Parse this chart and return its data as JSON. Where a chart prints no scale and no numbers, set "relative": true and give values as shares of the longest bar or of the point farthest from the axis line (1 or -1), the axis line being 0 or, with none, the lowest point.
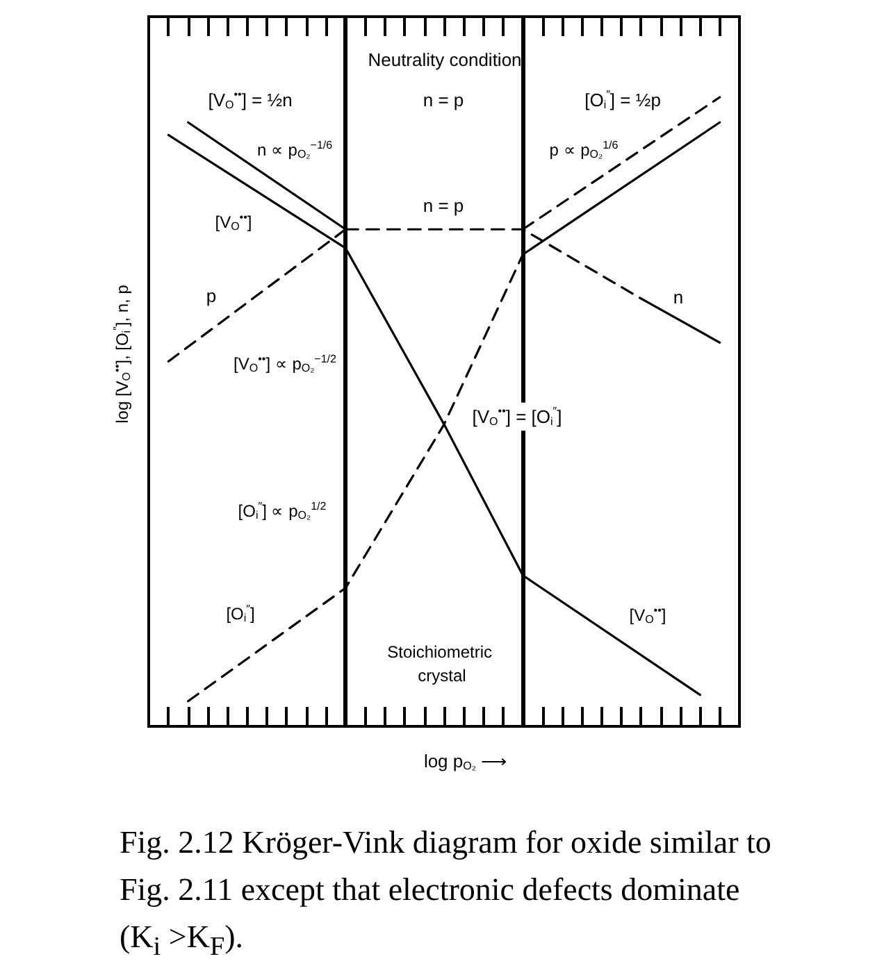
{
  "chart_data": {
    "type": "line",
    "relative": true,
    "xlabel": "log p$_{O₂}$ ⟶",
    "ylabel": "log [V$_{O}$$^{••}$], [O$_{i}$$^{″}$], n, p",
    "categories": [
      null,
      null,
      null,
      null,
      null,
      null,
      null,
      null,
      null,
      null,
      null,
      null,
      null,
      null,
      null,
      null,
      null,
      null,
      null,
      null,
      null,
      null,
      null,
      null,
      null,
      null,
      null,
      null,
      null,
      null,
      null
    ],
    "marker": "none",
    "series": [
      {
        "color": "#000000",
        "line_style": "solid",
        "values": [
          null,
          null,
          0.96,
          null,
          null,
          null,
          null,
          null,
          null,
          null,
          0.79,
          null,
          null,
          null,
          null,
          null,
          null,
          null,
          null,
          null,
          null,
          null,
          null,
          null,
          null,
          null,
          null,
          null,
          null,
          null,
          null
        ]
      },
      {
        "color": "#000000",
        "line_style": "dashed",
        "values": [
          null,
          null,
          null,
          null,
          null,
          null,
          null,
          null,
          null,
          null,
          0.79,
          null,
          null,
          null,
          null,
          null,
          null,
          null,
          null,
          0.79,
          null,
          null,
          null,
          null,
          null,
          0.68,
          null,
          null,
          null,
          null,
          null
        ]
      },
      {
        "color": "#000000",
        "line_style": "solid",
        "values": [
          null,
          null,
          null,
          null,
          null,
          null,
          null,
          null,
          null,
          null,
          null,
          null,
          null,
          null,
          null,
          null,
          null,
          null,
          null,
          null,
          null,
          null,
          null,
          null,
          null,
          0.68,
          null,
          null,
          null,
          0.61,
          null
        ]
      },
      {
        "color": "#000000",
        "line_style": "dashed",
        "values": [
          null,
          0.58,
          null,
          null,
          null,
          null,
          null,
          null,
          null,
          null,
          0.79,
          null,
          null,
          null,
          null,
          null,
          null,
          null,
          null,
          null,
          null,
          null,
          null,
          null,
          null,
          null,
          null,
          null,
          null,
          null,
          null
        ]
      },
      {
        "color": "#000000",
        "line_style": "dashed",
        "values": [
          null,
          null,
          null,
          null,
          null,
          null,
          null,
          null,
          null,
          null,
          null,
          null,
          null,
          null,
          null,
          null,
          null,
          null,
          null,
          0.79,
          null,
          null,
          null,
          null,
          null,
          null,
          null,
          null,
          null,
          1,
          null
        ]
      },
      {
        "color": "#000000",
        "line_style": "solid",
        "values": [
          null,
          0.94,
          null,
          null,
          null,
          null,
          null,
          null,
          null,
          null,
          0.76,
          null,
          null,
          null,
          null,
          0.48,
          null,
          null,
          null,
          0.24,
          null,
          null,
          null,
          null,
          null,
          null,
          null,
          null,
          0.05,
          null,
          null
        ]
      },
      {
        "color": "#000000",
        "line_style": "dashed",
        "values": [
          null,
          null,
          0.04,
          null,
          null,
          null,
          null,
          null,
          null,
          null,
          0.22,
          null,
          null,
          null,
          null,
          0.48,
          null,
          null,
          null,
          0.75,
          null,
          null,
          null,
          null,
          null,
          null,
          null,
          null,
          null,
          null,
          null
        ]
      },
      {
        "color": "#000000",
        "line_style": "solid",
        "values": [
          null,
          null,
          null,
          null,
          null,
          null,
          null,
          null,
          null,
          null,
          null,
          null,
          null,
          null,
          null,
          null,
          null,
          null,
          null,
          0.75,
          null,
          null,
          null,
          null,
          null,
          null,
          null,
          null,
          null,
          0.96,
          null
        ]
      }
    ],
    "annotations": [
      "Neutrality condition",
      "[V$_{O}$$^{••}$] = ½n",
      "n = p",
      "[O$_{i}$$^{″}$] = ½p",
      "n ∝ p$_{O₂}$$^{−1/6}$",
      "p ∝ p$_{O₂}$$^{1/6}$",
      "[V$_{O}$$^{••}$]",
      "n = p",
      "p",
      "n",
      "[V$_{O}$$^{••}$] ∝ p$_{O₂}$$^{−1/2}$",
      "[V$_{O}$$^{••}$] = [O$_{i}$$^{″}$]",
      "[O$_{i}$$^{″}$] ∝ p$_{O₂}$$^{1/2}$",
      "[O$_{i}$$^{″}$]",
      "[V$_{O}$$^{••}$]",
      "Stoichiometric crystal",
      "Fig. 2.12 Kröger-Vink diagram for oxide similar to Fig. 2.11 except that electronic defects dominate (K$_{i}$ >K$_{F}$)."
    ]
  }
}
